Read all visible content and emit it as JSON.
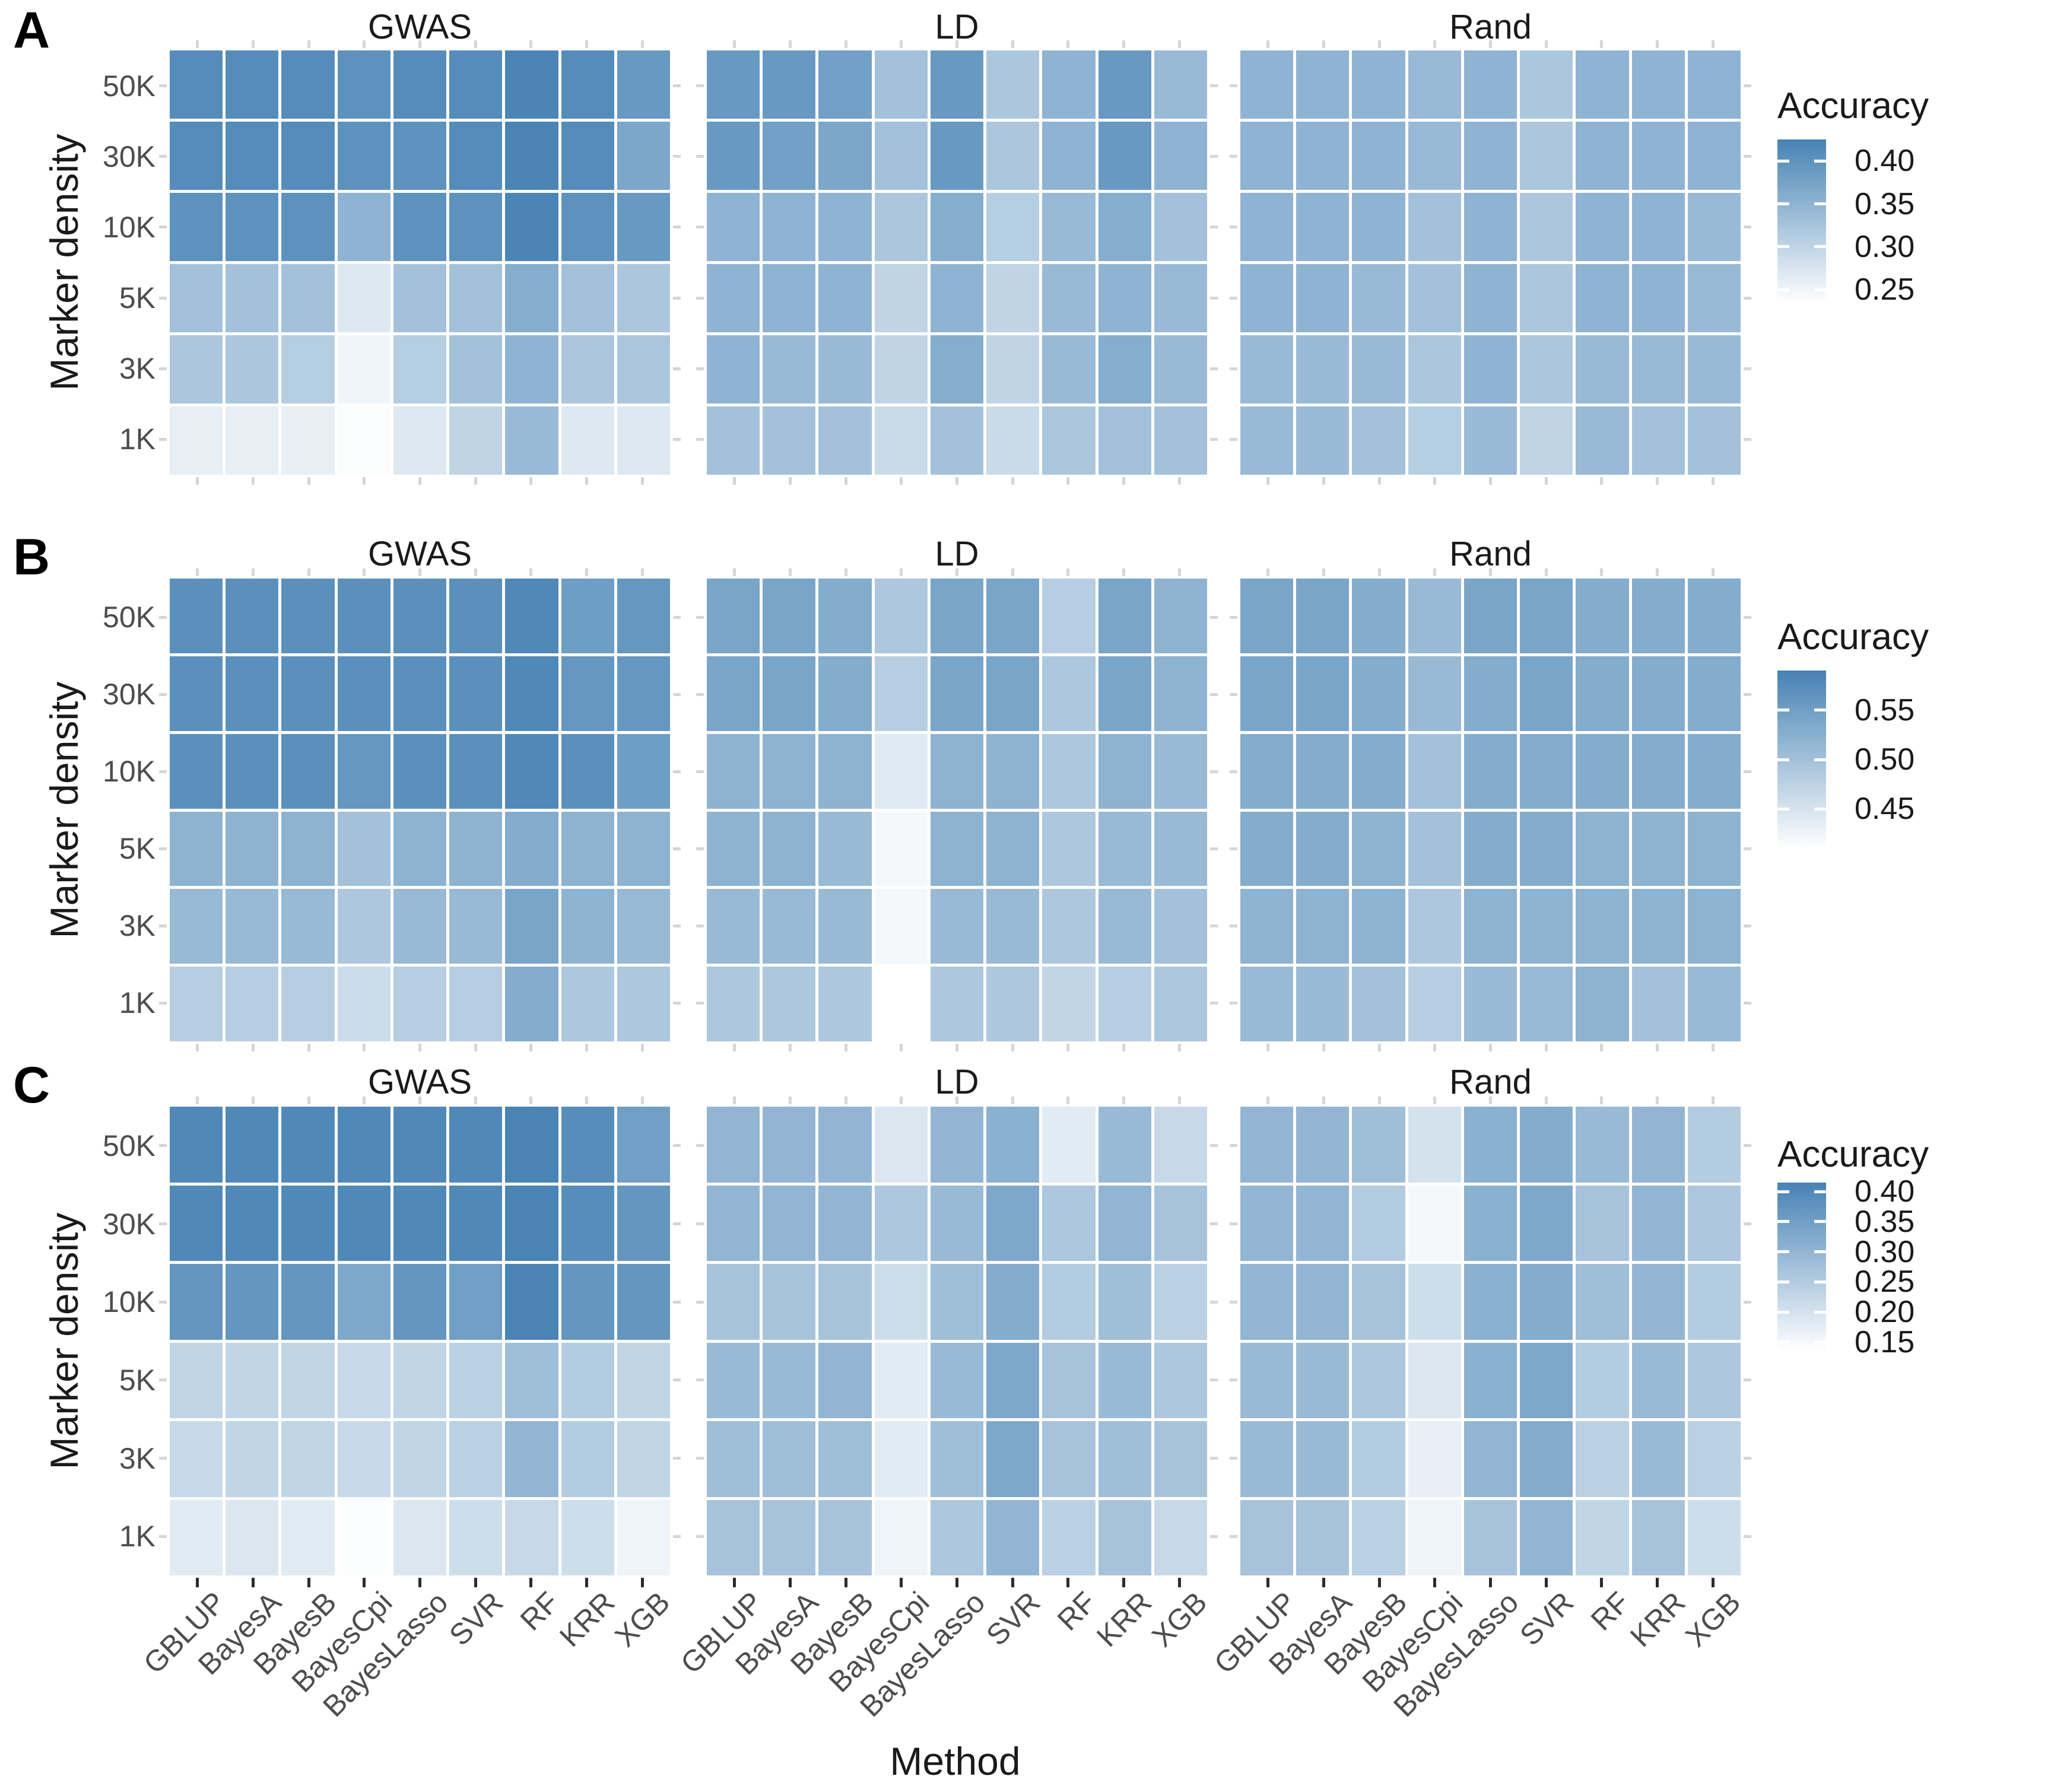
{
  "figure": {
    "xlabel": "Method",
    "ylabel": "Marker density",
    "colors": {
      "scale_low": "#FFFFFF",
      "scale_high": "#4682B4",
      "axis_text": "#4d4d4d",
      "title_text": "#1a1a1a",
      "tick_mark_grey": "#d6d6d6",
      "tick_mark_dark": "#2b2b2b"
    }
  },
  "chart_data": [
    {
      "type": "heatmap",
      "panel": "A",
      "facets": [
        "GWAS",
        "LD",
        "Rand"
      ],
      "rows": [
        "50K",
        "30K",
        "10K",
        "5K",
        "3K",
        "1K"
      ],
      "columns": [
        "GBLUP",
        "BayesA",
        "BayesB",
        "BayesCpi",
        "BayesLasso",
        "SVR",
        "RF",
        "KRR",
        "XGB"
      ],
      "xlabel": "Method",
      "ylabel": "Marker density",
      "legend": {
        "title": "Accuracy",
        "tick_labels": [
          "0.40",
          "0.35",
          "0.30",
          "0.25"
        ],
        "tick_values": [
          0.4,
          0.35,
          0.3,
          0.25
        ],
        "domain": [
          0.235,
          0.425
        ]
      },
      "values": {
        "GWAS": [
          [
            0.41,
            0.41,
            0.41,
            0.4,
            0.41,
            0.41,
            0.42,
            0.41,
            0.39
          ],
          [
            0.41,
            0.41,
            0.41,
            0.4,
            0.4,
            0.41,
            0.42,
            0.41,
            0.37
          ],
          [
            0.4,
            0.4,
            0.4,
            0.35,
            0.4,
            0.4,
            0.42,
            0.4,
            0.39
          ],
          [
            0.33,
            0.33,
            0.33,
            0.27,
            0.33,
            0.33,
            0.36,
            0.33,
            0.32
          ],
          [
            0.32,
            0.32,
            0.31,
            0.25,
            0.31,
            0.33,
            0.35,
            0.32,
            0.32
          ],
          [
            0.26,
            0.26,
            0.26,
            0.24,
            0.27,
            0.3,
            0.34,
            0.27,
            0.27
          ]
        ],
        "LD": [
          [
            0.39,
            0.39,
            0.38,
            0.33,
            0.39,
            0.32,
            0.35,
            0.39,
            0.34
          ],
          [
            0.39,
            0.38,
            0.37,
            0.33,
            0.39,
            0.32,
            0.35,
            0.39,
            0.35
          ],
          [
            0.35,
            0.35,
            0.35,
            0.32,
            0.36,
            0.31,
            0.34,
            0.36,
            0.33
          ],
          [
            0.35,
            0.35,
            0.35,
            0.3,
            0.35,
            0.3,
            0.34,
            0.35,
            0.34
          ],
          [
            0.35,
            0.34,
            0.34,
            0.3,
            0.36,
            0.3,
            0.34,
            0.36,
            0.34
          ],
          [
            0.33,
            0.33,
            0.33,
            0.29,
            0.33,
            0.29,
            0.32,
            0.33,
            0.33
          ]
        ],
        "Rand": [
          [
            0.35,
            0.35,
            0.35,
            0.34,
            0.35,
            0.32,
            0.35,
            0.35,
            0.35
          ],
          [
            0.35,
            0.35,
            0.35,
            0.34,
            0.35,
            0.32,
            0.35,
            0.35,
            0.35
          ],
          [
            0.35,
            0.35,
            0.35,
            0.33,
            0.35,
            0.32,
            0.35,
            0.35,
            0.34
          ],
          [
            0.35,
            0.35,
            0.34,
            0.33,
            0.35,
            0.32,
            0.35,
            0.35,
            0.34
          ],
          [
            0.34,
            0.34,
            0.34,
            0.32,
            0.35,
            0.32,
            0.34,
            0.34,
            0.34
          ],
          [
            0.34,
            0.34,
            0.33,
            0.31,
            0.34,
            0.3,
            0.34,
            0.33,
            0.33
          ]
        ]
      }
    },
    {
      "type": "heatmap",
      "panel": "B",
      "facets": [
        "GWAS",
        "LD",
        "Rand"
      ],
      "rows": [
        "50K",
        "30K",
        "10K",
        "5K",
        "3K",
        "1K"
      ],
      "columns": [
        "GBLUP",
        "BayesA",
        "BayesB",
        "BayesCpi",
        "BayesLasso",
        "SVR",
        "RF",
        "KRR",
        "XGB"
      ],
      "xlabel": "Method",
      "ylabel": "Marker density",
      "legend": {
        "title": "Accuracy",
        "tick_labels": [
          "0.55",
          "0.50",
          "0.45"
        ],
        "tick_values": [
          0.55,
          0.5,
          0.45
        ],
        "domain": [
          0.41,
          0.59
        ]
      },
      "values": {
        "GWAS": [
          [
            0.57,
            0.57,
            0.57,
            0.57,
            0.57,
            0.57,
            0.58,
            0.55,
            0.56
          ],
          [
            0.57,
            0.57,
            0.57,
            0.57,
            0.57,
            0.57,
            0.58,
            0.56,
            0.56
          ],
          [
            0.57,
            0.57,
            0.57,
            0.56,
            0.57,
            0.57,
            0.58,
            0.57,
            0.55
          ],
          [
            0.52,
            0.52,
            0.52,
            0.5,
            0.52,
            0.52,
            0.53,
            0.52,
            0.52
          ],
          [
            0.51,
            0.51,
            0.51,
            0.49,
            0.51,
            0.51,
            0.54,
            0.52,
            0.51
          ],
          [
            0.48,
            0.48,
            0.48,
            0.46,
            0.48,
            0.48,
            0.53,
            0.49,
            0.49
          ]
        ],
        "LD": [
          [
            0.54,
            0.54,
            0.53,
            0.49,
            0.54,
            0.54,
            0.48,
            0.54,
            0.52
          ],
          [
            0.54,
            0.54,
            0.53,
            0.48,
            0.54,
            0.54,
            0.49,
            0.54,
            0.52
          ],
          [
            0.52,
            0.52,
            0.52,
            0.44,
            0.52,
            0.52,
            0.49,
            0.52,
            0.51
          ],
          [
            0.52,
            0.52,
            0.51,
            0.42,
            0.52,
            0.52,
            0.49,
            0.51,
            0.51
          ],
          [
            0.51,
            0.51,
            0.51,
            0.42,
            0.51,
            0.51,
            0.49,
            0.51,
            0.5
          ],
          [
            0.49,
            0.49,
            0.49,
            0.41,
            0.49,
            0.49,
            0.47,
            0.48,
            0.49
          ]
        ],
        "Rand": [
          [
            0.54,
            0.54,
            0.53,
            0.51,
            0.54,
            0.54,
            0.53,
            0.53,
            0.53
          ],
          [
            0.54,
            0.54,
            0.53,
            0.51,
            0.53,
            0.54,
            0.53,
            0.53,
            0.53
          ],
          [
            0.53,
            0.53,
            0.53,
            0.5,
            0.53,
            0.53,
            0.53,
            0.53,
            0.53
          ],
          [
            0.53,
            0.53,
            0.52,
            0.5,
            0.53,
            0.53,
            0.52,
            0.52,
            0.52
          ],
          [
            0.52,
            0.52,
            0.52,
            0.49,
            0.52,
            0.52,
            0.52,
            0.52,
            0.52
          ],
          [
            0.51,
            0.51,
            0.5,
            0.48,
            0.51,
            0.51,
            0.52,
            0.5,
            0.51
          ]
        ]
      }
    },
    {
      "type": "heatmap",
      "panel": "C",
      "facets": [
        "GWAS",
        "LD",
        "Rand"
      ],
      "rows": [
        "50K",
        "30K",
        "10K",
        "5K",
        "3K",
        "1K"
      ],
      "columns": [
        "GBLUP",
        "BayesA",
        "BayesB",
        "BayesCpi",
        "BayesLasso",
        "SVR",
        "RF",
        "KRR",
        "XGB"
      ],
      "xlabel": "Method",
      "ylabel": "Marker density",
      "legend": {
        "title": "Accuracy",
        "tick_labels": [
          "0.40",
          "0.35",
          "0.30",
          "0.25",
          "0.20",
          "0.15"
        ],
        "tick_values": [
          0.4,
          0.35,
          0.3,
          0.25,
          0.2,
          0.15
        ],
        "domain": [
          0.135,
          0.415
        ]
      },
      "values": {
        "GWAS": [
          [
            0.4,
            0.4,
            0.4,
            0.4,
            0.4,
            0.4,
            0.41,
            0.39,
            0.35
          ],
          [
            0.4,
            0.4,
            0.4,
            0.4,
            0.4,
            0.4,
            0.41,
            0.39,
            0.37
          ],
          [
            0.37,
            0.37,
            0.37,
            0.33,
            0.37,
            0.35,
            0.41,
            0.37,
            0.37
          ],
          [
            0.23,
            0.23,
            0.23,
            0.22,
            0.23,
            0.24,
            0.28,
            0.25,
            0.23
          ],
          [
            0.22,
            0.23,
            0.23,
            0.22,
            0.23,
            0.24,
            0.3,
            0.25,
            0.23
          ],
          [
            0.18,
            0.19,
            0.18,
            0.14,
            0.19,
            0.21,
            0.22,
            0.21,
            0.16
          ]
        ],
        "LD": [
          [
            0.3,
            0.3,
            0.3,
            0.19,
            0.3,
            0.31,
            0.18,
            0.29,
            0.22
          ],
          [
            0.3,
            0.3,
            0.3,
            0.26,
            0.29,
            0.33,
            0.26,
            0.3,
            0.27
          ],
          [
            0.27,
            0.27,
            0.27,
            0.21,
            0.28,
            0.32,
            0.25,
            0.28,
            0.24
          ],
          [
            0.29,
            0.29,
            0.3,
            0.18,
            0.29,
            0.33,
            0.27,
            0.29,
            0.26
          ],
          [
            0.28,
            0.28,
            0.28,
            0.18,
            0.28,
            0.33,
            0.27,
            0.28,
            0.27
          ],
          [
            0.27,
            0.27,
            0.27,
            0.16,
            0.26,
            0.3,
            0.24,
            0.27,
            0.22
          ]
        ],
        "Rand": [
          [
            0.3,
            0.3,
            0.28,
            0.2,
            0.31,
            0.32,
            0.29,
            0.3,
            0.25
          ],
          [
            0.3,
            0.3,
            0.25,
            0.15,
            0.31,
            0.33,
            0.27,
            0.3,
            0.26
          ],
          [
            0.3,
            0.3,
            0.27,
            0.21,
            0.31,
            0.32,
            0.28,
            0.3,
            0.25
          ],
          [
            0.29,
            0.29,
            0.26,
            0.19,
            0.31,
            0.33,
            0.25,
            0.29,
            0.26
          ],
          [
            0.29,
            0.29,
            0.25,
            0.17,
            0.3,
            0.32,
            0.24,
            0.29,
            0.24
          ],
          [
            0.27,
            0.27,
            0.24,
            0.16,
            0.27,
            0.3,
            0.23,
            0.27,
            0.21
          ]
        ]
      }
    }
  ]
}
